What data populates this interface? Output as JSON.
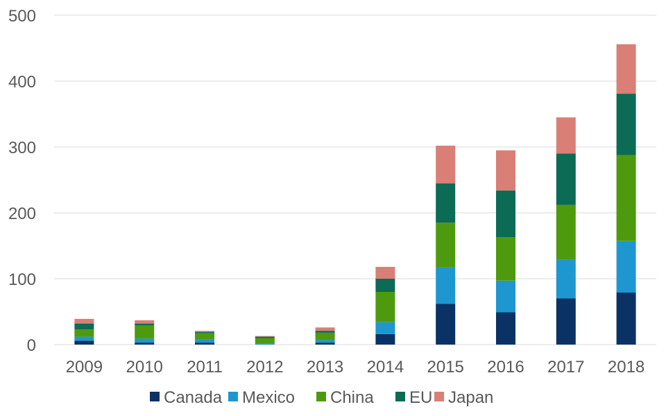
{
  "chart_data": {
    "type": "bar",
    "stacked": true,
    "title": "",
    "xlabel": "",
    "ylabel": "",
    "categories": [
      "2009",
      "2010",
      "2011",
      "2012",
      "2013",
      "2014",
      "2015",
      "2016",
      "2017",
      "2018"
    ],
    "ylim": [
      0,
      500
    ],
    "yticks": [
      0,
      100,
      200,
      300,
      400,
      500
    ],
    "grid": true,
    "legend_position": "bottom",
    "series": [
      {
        "name": "Canada",
        "color": "#0b3264",
        "values": [
          6,
          3,
          3,
          0,
          3,
          16,
          62,
          49,
          70,
          79
        ]
      },
      {
        "name": "Mexico",
        "color": "#1e97d0",
        "values": [
          6,
          6,
          5,
          2,
          4,
          18,
          55,
          48,
          59,
          78
        ]
      },
      {
        "name": "China",
        "color": "#4e9a0e",
        "values": [
          11,
          20,
          9,
          8,
          11,
          46,
          68,
          66,
          83,
          131
        ]
      },
      {
        "name": "EU",
        "color": "#0c6b55",
        "values": [
          9,
          3,
          2,
          2,
          3,
          20,
          60,
          71,
          78,
          93
        ]
      },
      {
        "name": "Japan",
        "color": "#d97f76",
        "values": [
          7,
          5,
          2,
          1,
          5,
          18,
          57,
          61,
          55,
          75
        ]
      }
    ]
  }
}
